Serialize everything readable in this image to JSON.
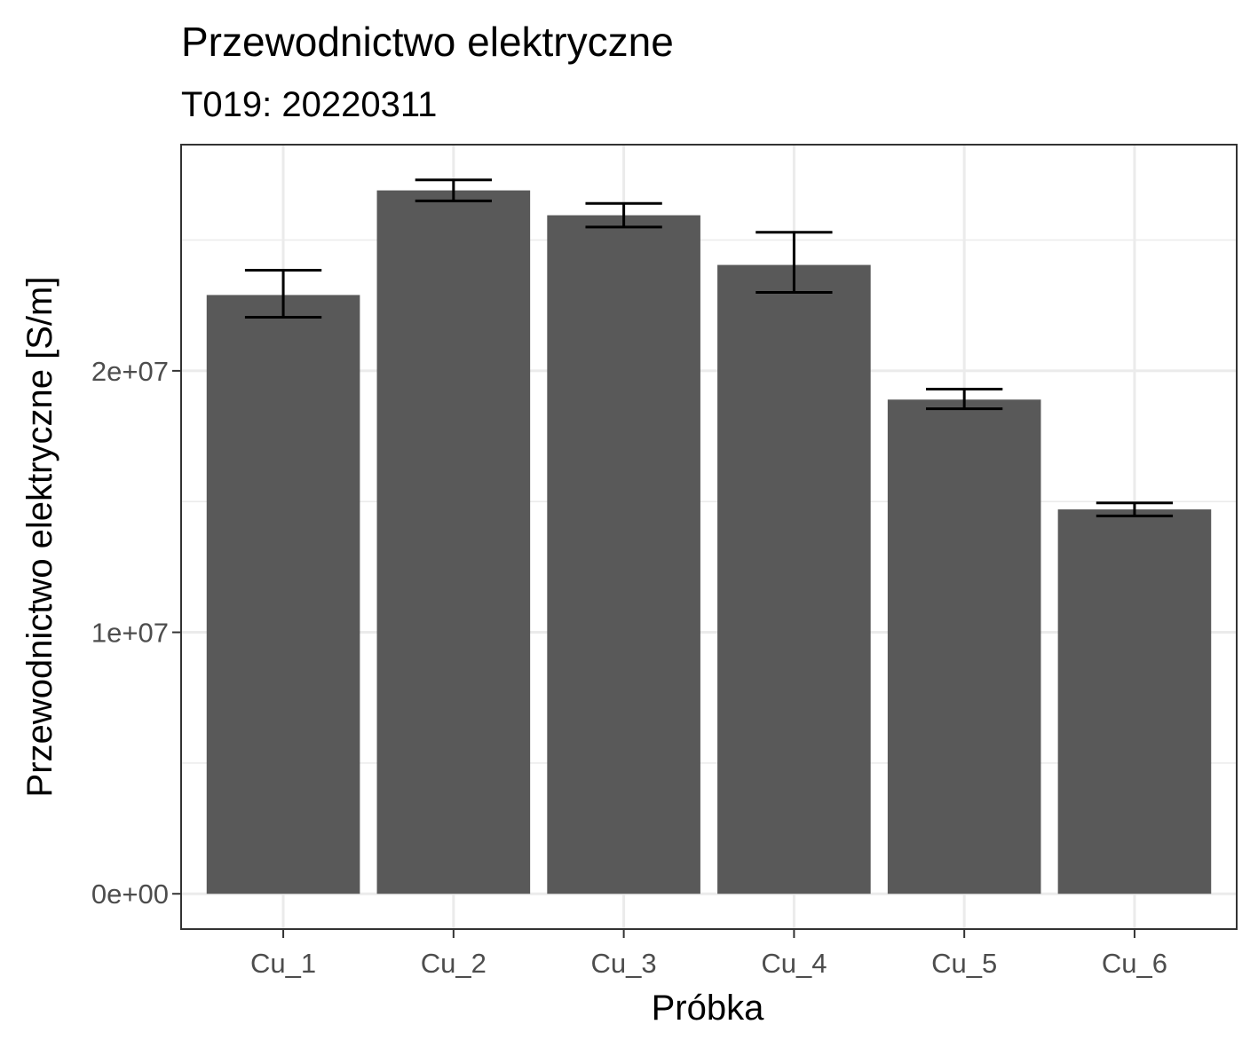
{
  "chart_data": {
    "type": "bar",
    "title": "Przewodnictwo elektryczne",
    "subtitle": "T019: 20220311",
    "xlabel": "Próbka",
    "ylabel": "Przewodnictwo elektryczne [S/m]",
    "categories": [
      "Cu_1",
      "Cu_2",
      "Cu_3",
      "Cu_4",
      "Cu_5",
      "Cu_6"
    ],
    "values": [
      22900000,
      26900000,
      25950000,
      24050000,
      18900000,
      14700000
    ],
    "error_low": [
      22050000,
      26500000,
      25500000,
      23000000,
      18550000,
      14450000
    ],
    "error_high": [
      23850000,
      27300000,
      26400000,
      25300000,
      19300000,
      14950000
    ],
    "ylim": [
      -1350000,
      28650000
    ],
    "yticks": [
      {
        "value": 0,
        "label": "0e+00"
      },
      {
        "value": 10000000,
        "label": "1e+07"
      },
      {
        "value": 20000000,
        "label": "2e+07"
      }
    ],
    "minor_gridlines": [
      5000000,
      15000000,
      25000000
    ],
    "grid": true,
    "legend": "none",
    "colors": {
      "bar": "#595959",
      "error_bar": "#000000",
      "grid": "#ebebeb",
      "panel_border": "#333333",
      "tick": "#333333",
      "tick_label": "#4d4d4d"
    }
  }
}
